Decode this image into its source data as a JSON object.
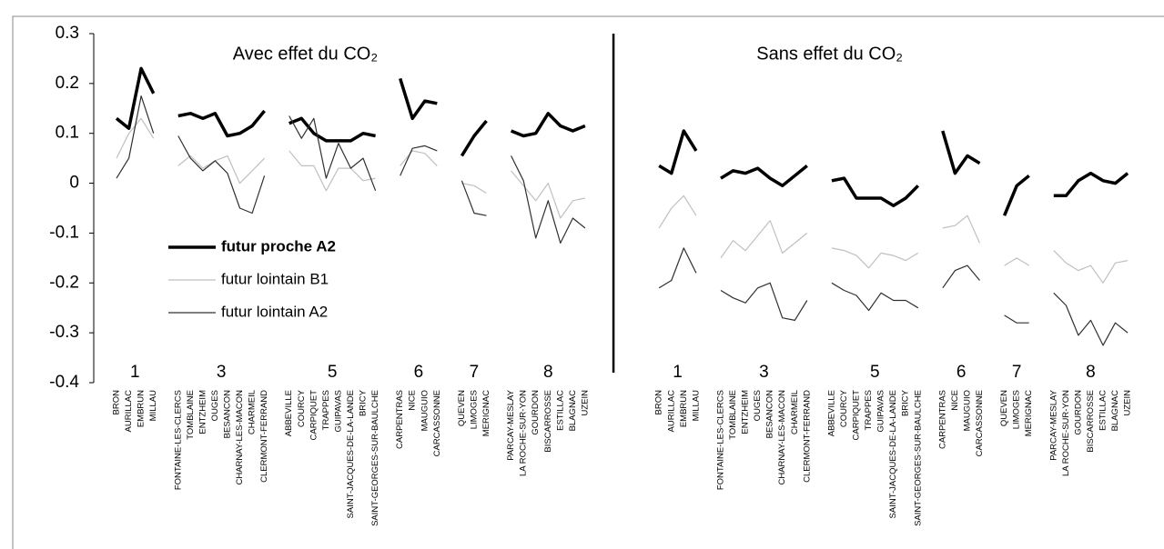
{
  "chart_data": {
    "type": "line",
    "panel_titles": [
      "Avec  effet du CO₂",
      "Sans  effet du CO₂"
    ],
    "group_labels": [
      "1",
      "3",
      "5",
      "6",
      "7",
      "8",
      "1",
      "3",
      "5",
      "6",
      "7",
      "8"
    ],
    "categories": [
      "BRON",
      "AURILLAC",
      "EMBRUN",
      "MILLAU",
      null,
      "FONTAINE-LES-CLERCS",
      "TOMBLAINE",
      "ENTZHEIM",
      "OUGES",
      "BESANCON",
      "CHARNAY-LES-MACON",
      "CHARMEIL",
      "CLERMONT-FERRAND",
      null,
      "ABBEVILLE",
      "COURCY",
      "CARPIQUET",
      "TRAPPES",
      "GUIPAVAS",
      "SAINT-JACQUES-DE-LA-LANDE",
      "BRICY",
      "SAINT-GEORGES-SUR-BAULCHE",
      null,
      "CARPENTRAS",
      "NICE",
      "MAUGUIO",
      "CARCASSONNE",
      null,
      "QUEVEN",
      "LIMOGES",
      "MERIGNAC",
      null,
      "PARCAY-MESLAY",
      "LA ROCHE-SUR-YON",
      "GOURDON",
      "BISCARROSSE",
      "ESTILLAC",
      "BLAGNAC",
      "UZEIN",
      null,
      null,
      null,
      null,
      null,
      "BRON",
      "AURILLAC",
      "EMBRUN",
      "MILLAU",
      null,
      "FONTAINE-LES-CLERCS",
      "TOMBLAINE",
      "ENTZHEIM",
      "OUGES",
      "BESANCON",
      "CHARNAY-LES-MACON",
      "CHARMEIL",
      "CLERMONT-FERRAND",
      null,
      "ABBEVILLE",
      "COURCY",
      "CARPIQUET",
      "TRAPPES",
      "GUIPAVAS",
      "SAINT-JACQUES-DE-LA-LANDE",
      "BRICY",
      "SAINT-GEORGES-SUR-BAULCHE",
      null,
      "CARPENTRAS",
      "NICE",
      "MAUGUIO",
      "CARCASSONNE",
      null,
      "QUEVEN",
      "LIMOGES",
      "MERIGNAC",
      null,
      "PARCAY-MESLAY",
      "LA ROCHE-SUR-YON",
      "GOURDON",
      "BISCARROSSE",
      "ESTILLAC",
      "BLAGNAC",
      "UZEIN"
    ],
    "series": [
      {
        "name": "futur proche A2",
        "color": "#000000",
        "line_width": 3.5,
        "values": [
          0.13,
          0.11,
          0.23,
          0.18,
          null,
          0.135,
          0.14,
          0.13,
          0.14,
          0.095,
          0.1,
          0.115,
          0.145,
          null,
          0.12,
          0.13,
          0.1,
          0.085,
          0.085,
          0.085,
          0.1,
          0.095,
          null,
          0.21,
          0.13,
          0.165,
          0.16,
          null,
          0.055,
          0.095,
          0.125,
          null,
          0.105,
          0.095,
          0.1,
          0.14,
          0.115,
          0.105,
          0.115,
          null,
          null,
          null,
          null,
          null,
          0.035,
          0.02,
          0.105,
          0.065,
          null,
          0.01,
          0.025,
          0.02,
          0.03,
          0.01,
          -0.005,
          0.015,
          0.035,
          null,
          0.005,
          0.01,
          -0.03,
          -0.03,
          -0.03,
          -0.045,
          -0.03,
          -0.005,
          null,
          0.105,
          0.02,
          0.055,
          0.04,
          null,
          -0.065,
          -0.005,
          0.015,
          null,
          -0.025,
          -0.025,
          0.005,
          0.02,
          0.005,
          0.0,
          0.02
        ]
      },
      {
        "name": "futur lointain B1",
        "color": "#c0c0c0",
        "line_width": 1.2,
        "values": [
          0.05,
          0.1,
          0.13,
          0.09,
          null,
          0.035,
          0.055,
          0.03,
          0.045,
          0.055,
          0.0,
          0.025,
          0.05,
          null,
          0.065,
          0.035,
          0.035,
          -0.015,
          0.03,
          0.03,
          0.005,
          0.01,
          null,
          0.035,
          0.065,
          0.06,
          0.035,
          null,
          0.0,
          -0.005,
          -0.02,
          null,
          0.025,
          -0.005,
          -0.035,
          0.0,
          -0.07,
          -0.035,
          -0.03,
          null,
          null,
          null,
          null,
          null,
          -0.09,
          -0.05,
          -0.025,
          -0.065,
          null,
          -0.15,
          -0.115,
          -0.135,
          -0.105,
          -0.075,
          -0.14,
          -0.12,
          -0.1,
          null,
          -0.13,
          -0.135,
          -0.145,
          -0.17,
          -0.14,
          -0.145,
          -0.155,
          -0.14,
          null,
          -0.09,
          -0.085,
          -0.065,
          -0.12,
          null,
          -0.165,
          -0.15,
          -0.165,
          null,
          -0.135,
          -0.16,
          -0.175,
          -0.165,
          -0.2,
          -0.16,
          -0.155
        ]
      },
      {
        "name": "futur lointain A2",
        "color": "#303030",
        "line_width": 1.2,
        "values": [
          0.01,
          0.05,
          0.175,
          0.1,
          null,
          0.095,
          0.05,
          0.025,
          0.045,
          0.02,
          -0.05,
          -0.06,
          0.015,
          null,
          0.135,
          0.09,
          0.13,
          0.01,
          0.08,
          0.03,
          0.05,
          -0.015,
          null,
          0.015,
          0.07,
          0.075,
          0.065,
          null,
          0.005,
          -0.06,
          -0.065,
          null,
          0.055,
          0.005,
          -0.11,
          -0.035,
          -0.12,
          -0.07,
          -0.09,
          null,
          null,
          null,
          null,
          null,
          -0.21,
          -0.195,
          -0.13,
          -0.18,
          null,
          -0.215,
          -0.23,
          -0.24,
          -0.21,
          -0.2,
          -0.27,
          -0.275,
          -0.235,
          null,
          -0.2,
          -0.215,
          -0.225,
          -0.255,
          -0.22,
          -0.235,
          -0.235,
          -0.25,
          null,
          -0.21,
          -0.175,
          -0.165,
          -0.195,
          null,
          -0.265,
          -0.28,
          -0.28,
          null,
          -0.22,
          -0.245,
          -0.305,
          -0.275,
          -0.325,
          -0.28,
          -0.3
        ]
      }
    ],
    "ylim": [
      -0.4,
      0.3
    ],
    "yticks": [
      -0.4,
      -0.3,
      -0.2,
      -0.1,
      0,
      0.1,
      0.2,
      0.3
    ],
    "grid": false,
    "legend": "lower left"
  }
}
